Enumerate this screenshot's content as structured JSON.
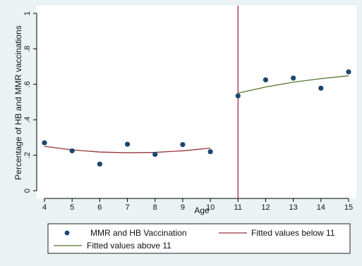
{
  "chart_data": {
    "type": "scatter",
    "xlabel": "Age",
    "ylabel": "Percentage of HB and MMR vaccinations",
    "xlim": [
      4,
      15
    ],
    "ylim": [
      0,
      1
    ],
    "x_ticks": [
      "4",
      "5",
      "6",
      "7",
      "8",
      "9",
      "10",
      "11",
      "12",
      "13",
      "14",
      "15"
    ],
    "y_ticks": [
      "0",
      ".2",
      ".4",
      ".6",
      ".8",
      "1"
    ],
    "grid": false,
    "cutoff_line": {
      "x": 11,
      "color": "#a0174a"
    },
    "series": [
      {
        "name": "MMR and HB Vaccination",
        "kind": "scatter",
        "color": "#1a476f",
        "x": [
          4,
          5,
          6,
          7,
          8,
          9,
          10,
          11,
          12,
          13,
          14,
          15
        ],
        "y": [
          0.27,
          0.225,
          0.15,
          0.262,
          0.205,
          0.26,
          0.22,
          0.535,
          0.625,
          0.635,
          0.578,
          0.67
        ]
      },
      {
        "name": "Fitted values below 11",
        "kind": "line",
        "color": "#90353b",
        "x": [
          4,
          5,
          6,
          7,
          8,
          9,
          10
        ],
        "y": [
          0.25,
          0.23,
          0.218,
          0.214,
          0.216,
          0.225,
          0.24
        ]
      },
      {
        "name": "Fitted values above 11",
        "kind": "line",
        "color": "#55752f",
        "x": [
          11,
          12,
          13,
          14,
          15
        ],
        "y": [
          0.55,
          0.585,
          0.612,
          0.632,
          0.648
        ]
      }
    ],
    "legend_position": "bottom"
  }
}
